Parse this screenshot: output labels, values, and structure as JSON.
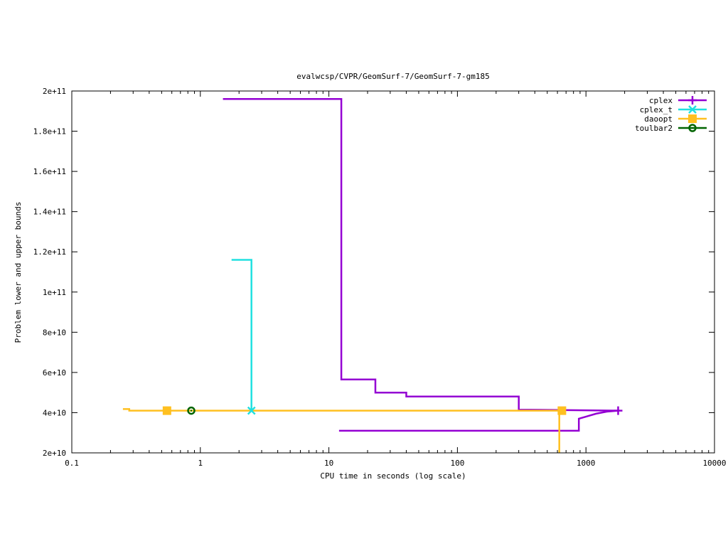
{
  "chart_data": {
    "type": "line",
    "title": "evalwcsp/CVPR/GeomSurf-7/GeomSurf-7-gm185",
    "xlabel": "CPU time in seconds (log scale)",
    "ylabel": "Problem lower and upper bounds",
    "xscale": "log",
    "xlim": [
      0.1,
      10000
    ],
    "ylim": [
      20000000000,
      200000000000
    ],
    "x_ticks": [
      {
        "value": 0.1,
        "label": "0.1"
      },
      {
        "value": 1,
        "label": "1"
      },
      {
        "value": 10,
        "label": "10"
      },
      {
        "value": 100,
        "label": "100"
      },
      {
        "value": 1000,
        "label": "1000"
      },
      {
        "value": 10000,
        "label": "10000"
      }
    ],
    "y_ticks": [
      {
        "value": 20000000000,
        "label": "2e+10"
      },
      {
        "value": 40000000000,
        "label": "4e+10"
      },
      {
        "value": 60000000000,
        "label": "6e+10"
      },
      {
        "value": 80000000000,
        "label": "8e+10"
      },
      {
        "value": 100000000000,
        "label": "1e+11"
      },
      {
        "value": 120000000000,
        "label": "1.2e+11"
      },
      {
        "value": 140000000000,
        "label": "1.4e+11"
      },
      {
        "value": 160000000000,
        "label": "1.6e+11"
      },
      {
        "value": 180000000000,
        "label": "1.8e+11"
      },
      {
        "value": 200000000000,
        "label": "2e+11"
      }
    ],
    "grid": false,
    "legend_position": "top-right",
    "series": [
      {
        "name": "cplex",
        "color": "#9400d3",
        "marker": "plus",
        "marker_points": [
          [
            1780,
            41000000000
          ]
        ],
        "lines": [
          [
            [
              1.5,
              196000000000
            ],
            [
              12.5,
              196000000000
            ],
            [
              12.5,
              56500000000
            ],
            [
              23,
              56500000000
            ],
            [
              23,
              50000000000
            ],
            [
              40,
              50000000000
            ],
            [
              40,
              48000000000
            ],
            [
              300,
              48000000000
            ],
            [
              300,
              41500000000
            ],
            [
              1780,
              41000000000
            ]
          ],
          [
            [
              12,
              31000000000
            ],
            [
              880,
              31000000000
            ],
            [
              880,
              37000000000
            ],
            [
              1000,
              38000000000
            ],
            [
              1200,
              39500000000
            ],
            [
              1450,
              40500000000
            ],
            [
              1780,
              41000000000
            ]
          ]
        ]
      },
      {
        "name": "cplex_t",
        "color": "#20e0e0",
        "marker": "cross",
        "marker_points": [
          [
            2.5,
            41000000000
          ]
        ],
        "lines": [
          [
            [
              1.75,
              116000000000
            ],
            [
              2.5,
              116000000000
            ],
            [
              2.5,
              41000000000
            ]
          ]
        ]
      },
      {
        "name": "daoopt",
        "color": "#ffc020",
        "marker": "square",
        "marker_points": [
          [
            0.55,
            41000000000
          ],
          [
            650,
            41000000000
          ]
        ],
        "lines": [
          [
            [
              0.25,
              41800000000
            ],
            [
              0.28,
              41800000000
            ],
            [
              0.28,
              41000000000
            ],
            [
              650,
              41000000000
            ]
          ],
          [
            [
              620,
              41000000000
            ],
            [
              620,
              20000000000
            ]
          ]
        ]
      },
      {
        "name": "toulbar2",
        "color": "#006400",
        "marker": "circle",
        "marker_points": [
          [
            0.85,
            41000000000
          ]
        ],
        "lines": []
      }
    ]
  }
}
